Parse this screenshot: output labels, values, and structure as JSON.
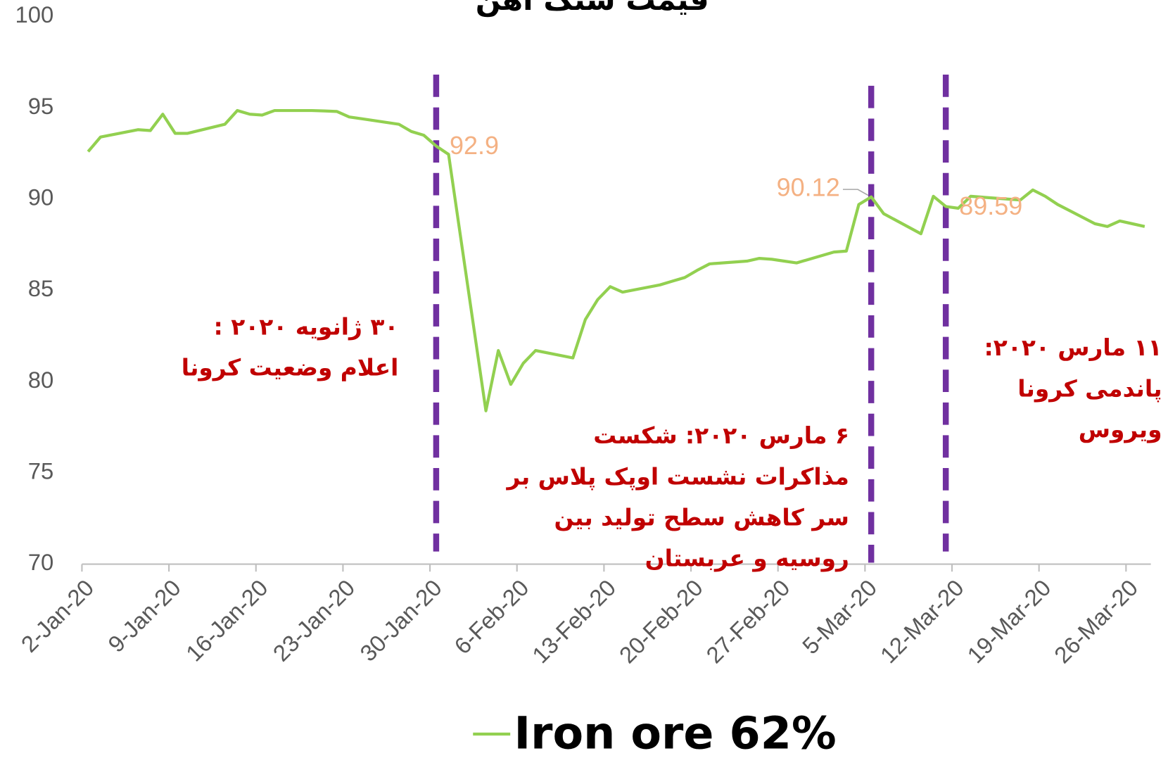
{
  "chart_data": {
    "type": "line",
    "title": "قیمت سنگ آهن",
    "x": [
      "2020-01-02",
      "2020-01-03",
      "2020-01-06",
      "2020-01-07",
      "2020-01-08",
      "2020-01-09",
      "2020-01-10",
      "2020-01-13",
      "2020-01-14",
      "2020-01-15",
      "2020-01-16",
      "2020-01-17",
      "2020-01-20",
      "2020-01-21",
      "2020-01-22",
      "2020-01-23",
      "2020-01-24",
      "2020-01-27",
      "2020-01-28",
      "2020-01-29",
      "2020-01-30",
      "2020-01-31",
      "2020-02-03",
      "2020-02-04",
      "2020-02-05",
      "2020-02-06",
      "2020-02-07",
      "2020-02-10",
      "2020-02-11",
      "2020-02-12",
      "2020-02-13",
      "2020-02-14",
      "2020-02-17",
      "2020-02-18",
      "2020-02-19",
      "2020-02-20",
      "2020-02-21",
      "2020-02-24",
      "2020-02-25",
      "2020-02-26",
      "2020-02-27",
      "2020-02-28",
      "2020-03-02",
      "2020-03-03",
      "2020-03-04",
      "2020-03-05",
      "2020-03-06",
      "2020-03-09",
      "2020-03-10",
      "2020-03-11",
      "2020-03-12",
      "2020-03-13",
      "2020-03-16",
      "2020-03-17",
      "2020-03-18",
      "2020-03-19",
      "2020-03-20",
      "2020-03-23",
      "2020-03-24",
      "2020-03-25",
      "2020-03-26",
      "2020-03-27"
    ],
    "series": [
      {
        "name": "Iron ore 62%",
        "color": "#92d050",
        "values": [
          92.6,
          93.4,
          93.8,
          93.75,
          94.65,
          93.6,
          93.6,
          94.1,
          94.85,
          94.65,
          94.6,
          94.85,
          94.85,
          94.83,
          94.8,
          94.5,
          94.4,
          94.1,
          93.7,
          93.5,
          92.9,
          92.45,
          78.4,
          81.7,
          79.85,
          81.0,
          81.7,
          81.3,
          83.4,
          84.5,
          85.2,
          84.9,
          85.3,
          85.5,
          85.7,
          86.1,
          86.45,
          86.6,
          86.75,
          86.7,
          86.6,
          86.5,
          87.1,
          87.15,
          89.7,
          90.12,
          89.2,
          88.1,
          90.15,
          89.59,
          89.5,
          90.15,
          90.0,
          89.95,
          90.5,
          90.15,
          89.7,
          88.65,
          88.5,
          88.8,
          88.65,
          88.5
        ],
        "value_labels": [
          null,
          null,
          null,
          null,
          null,
          null,
          null,
          null,
          null,
          null,
          null,
          null,
          null,
          null,
          null,
          null,
          null,
          null,
          null,
          null,
          "92.9",
          null,
          null,
          null,
          null,
          null,
          null,
          null,
          null,
          null,
          null,
          null,
          null,
          null,
          null,
          null,
          null,
          null,
          null,
          null,
          null,
          null,
          null,
          null,
          null,
          "90.12",
          null,
          null,
          null,
          "89.59",
          null,
          null,
          null,
          null,
          null,
          null,
          null,
          null,
          null,
          null,
          null,
          null
        ]
      }
    ],
    "xlim": [
      "2020-01-02",
      "2020-03-28"
    ],
    "xticks": [
      {
        "value": "2020-01-02",
        "label": "2-Jan-20"
      },
      {
        "value": "2020-01-09",
        "label": "9-Jan-20"
      },
      {
        "value": "2020-01-16",
        "label": "16-Jan-20"
      },
      {
        "value": "2020-01-23",
        "label": "23-Jan-20"
      },
      {
        "value": "2020-01-30",
        "label": "30-Jan-20"
      },
      {
        "value": "2020-02-06",
        "label": "6-Feb-20"
      },
      {
        "value": "2020-02-13",
        "label": "13-Feb-20"
      },
      {
        "value": "2020-02-20",
        "label": "20-Feb-20"
      },
      {
        "value": "2020-02-27",
        "label": "27-Feb-20"
      },
      {
        "value": "2020-03-05",
        "label": "5-Mar-20"
      },
      {
        "value": "2020-03-12",
        "label": "12-Mar-20"
      },
      {
        "value": "2020-03-19",
        "label": "19-Mar-20"
      },
      {
        "value": "2020-03-26",
        "label": "26-Mar-20"
      }
    ],
    "ylim": [
      70,
      100
    ],
    "yticks": [
      70,
      75,
      80,
      85,
      90,
      95,
      100
    ],
    "annotations": [
      {
        "x": "2020-01-30",
        "text": [
          "۳۰ ژانویه ۲۰۲۰ :",
          "اعلام وضعیت کرونا"
        ]
      },
      {
        "x": "2020-03-05",
        "text": [
          "۶ مارس ۲۰۲۰: شکست",
          "مذاکرات نشست اوپک پلاس بر",
          "سر کاهش سطح تولید بین",
          "روسیه و عربستان"
        ]
      },
      {
        "x": "2020-03-11",
        "text": [
          "۱۱ مارس ۲۰۲۰:",
          "پاندمی کرونا",
          "ویروس"
        ]
      }
    ]
  }
}
